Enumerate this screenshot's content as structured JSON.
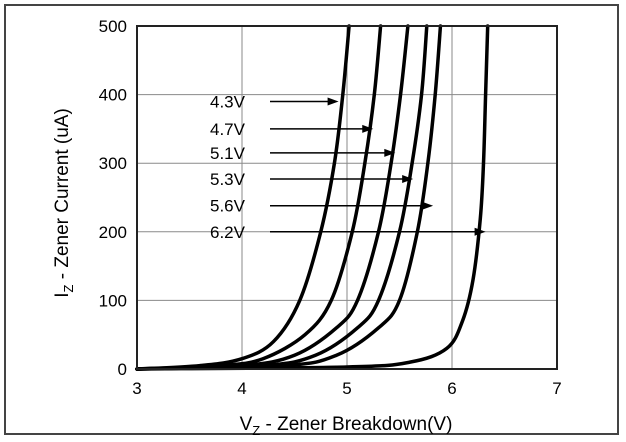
{
  "chart_data": {
    "type": "line",
    "title": "",
    "xlabel": {
      "prefix": "V",
      "sub": "Z",
      "rest": " - Zener Breakdown(V)"
    },
    "ylabel": {
      "prefix": "I",
      "sub": "Z",
      "rest": " - Zener Current (uA)"
    },
    "xlim": [
      3,
      7
    ],
    "ylim": [
      0,
      500
    ],
    "x_ticks": [
      "3",
      "4",
      "5",
      "6",
      "7"
    ],
    "y_ticks": [
      "0",
      "100",
      "200",
      "300",
      "400",
      "500"
    ],
    "grid": true,
    "legend": "none",
    "line_color": "#000000",
    "series": [
      {
        "name": "4.3V",
        "points": [
          [
            3.0,
            0
          ],
          [
            3.6,
            5
          ],
          [
            4.0,
            15
          ],
          [
            4.3,
            40
          ],
          [
            4.55,
            100
          ],
          [
            4.75,
            200
          ],
          [
            4.88,
            300
          ],
          [
            4.96,
            400
          ],
          [
            5.02,
            500
          ]
        ]
      },
      {
        "name": "4.7V",
        "points": [
          [
            3.0,
            0
          ],
          [
            3.8,
            5
          ],
          [
            4.2,
            15
          ],
          [
            4.6,
            50
          ],
          [
            4.85,
            100
          ],
          [
            5.05,
            200
          ],
          [
            5.17,
            300
          ],
          [
            5.26,
            400
          ],
          [
            5.32,
            500
          ]
        ]
      },
      {
        "name": "5.1V",
        "points": [
          [
            3.0,
            0
          ],
          [
            4.0,
            5
          ],
          [
            4.5,
            20
          ],
          [
            4.9,
            60
          ],
          [
            5.1,
            100
          ],
          [
            5.3,
            200
          ],
          [
            5.42,
            300
          ],
          [
            5.51,
            400
          ],
          [
            5.58,
            500
          ]
        ]
      },
      {
        "name": "5.3V",
        "points": [
          [
            3.0,
            0
          ],
          [
            4.2,
            5
          ],
          [
            4.7,
            20
          ],
          [
            5.1,
            60
          ],
          [
            5.3,
            100
          ],
          [
            5.5,
            200
          ],
          [
            5.62,
            300
          ],
          [
            5.71,
            400
          ],
          [
            5.76,
            500
          ]
        ]
      },
      {
        "name": "5.6V",
        "points": [
          [
            3.0,
            0
          ],
          [
            4.4,
            5
          ],
          [
            4.9,
            20
          ],
          [
            5.3,
            60
          ],
          [
            5.5,
            100
          ],
          [
            5.67,
            200
          ],
          [
            5.77,
            300
          ],
          [
            5.84,
            400
          ],
          [
            5.89,
            500
          ]
        ]
      },
      {
        "name": "6.2V",
        "points": [
          [
            3.0,
            0
          ],
          [
            5.0,
            3
          ],
          [
            5.6,
            10
          ],
          [
            5.95,
            30
          ],
          [
            6.1,
            70
          ],
          [
            6.2,
            130
          ],
          [
            6.27,
            220
          ],
          [
            6.3,
            300
          ],
          [
            6.32,
            400
          ],
          [
            6.34,
            500
          ]
        ]
      }
    ],
    "annotations": [
      {
        "label": "4.3V",
        "arrow_to": [
          4.92,
          390
        ]
      },
      {
        "label": "4.7V",
        "arrow_to": [
          5.25,
          350
        ]
      },
      {
        "label": "5.1V",
        "arrow_to": [
          5.46,
          315
        ]
      },
      {
        "label": "5.3V",
        "arrow_to": [
          5.63,
          277
        ]
      },
      {
        "label": "5.6V",
        "arrow_to": [
          5.82,
          238
        ]
      },
      {
        "label": "6.2V",
        "arrow_to": [
          6.32,
          200
        ]
      }
    ]
  }
}
